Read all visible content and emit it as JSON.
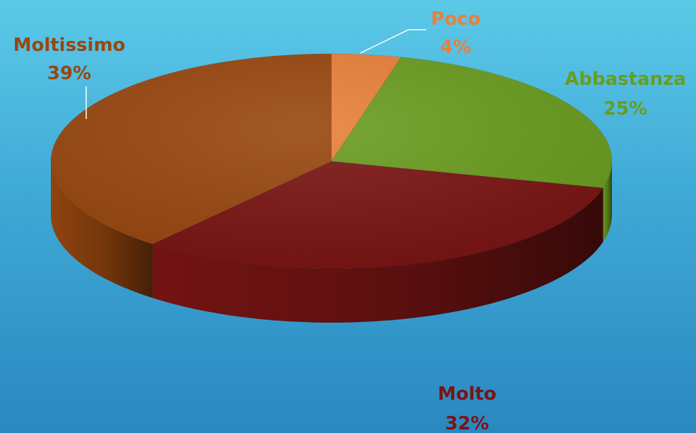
{
  "chart_data": {
    "type": "pie",
    "title": "",
    "style": "3d",
    "slices": [
      {
        "label": "Poco",
        "value": 4,
        "value_label": "4%",
        "color": "#e8803a"
      },
      {
        "label": "Abbastanza",
        "value": 25,
        "value_label": "25%",
        "color": "#6a9c1f"
      },
      {
        "label": "Molto",
        "value": 32,
        "value_label": "32%",
        "color": "#7a1414"
      },
      {
        "label": "Moltissimo",
        "value": 39,
        "value_label": "39%",
        "color": "#98470f"
      }
    ],
    "label_colors": {
      "Poco": "#e8803a",
      "Abbastanza": "#6a9c1f",
      "Molto": "#7a1414",
      "Moltissimo": "#98470f"
    }
  }
}
